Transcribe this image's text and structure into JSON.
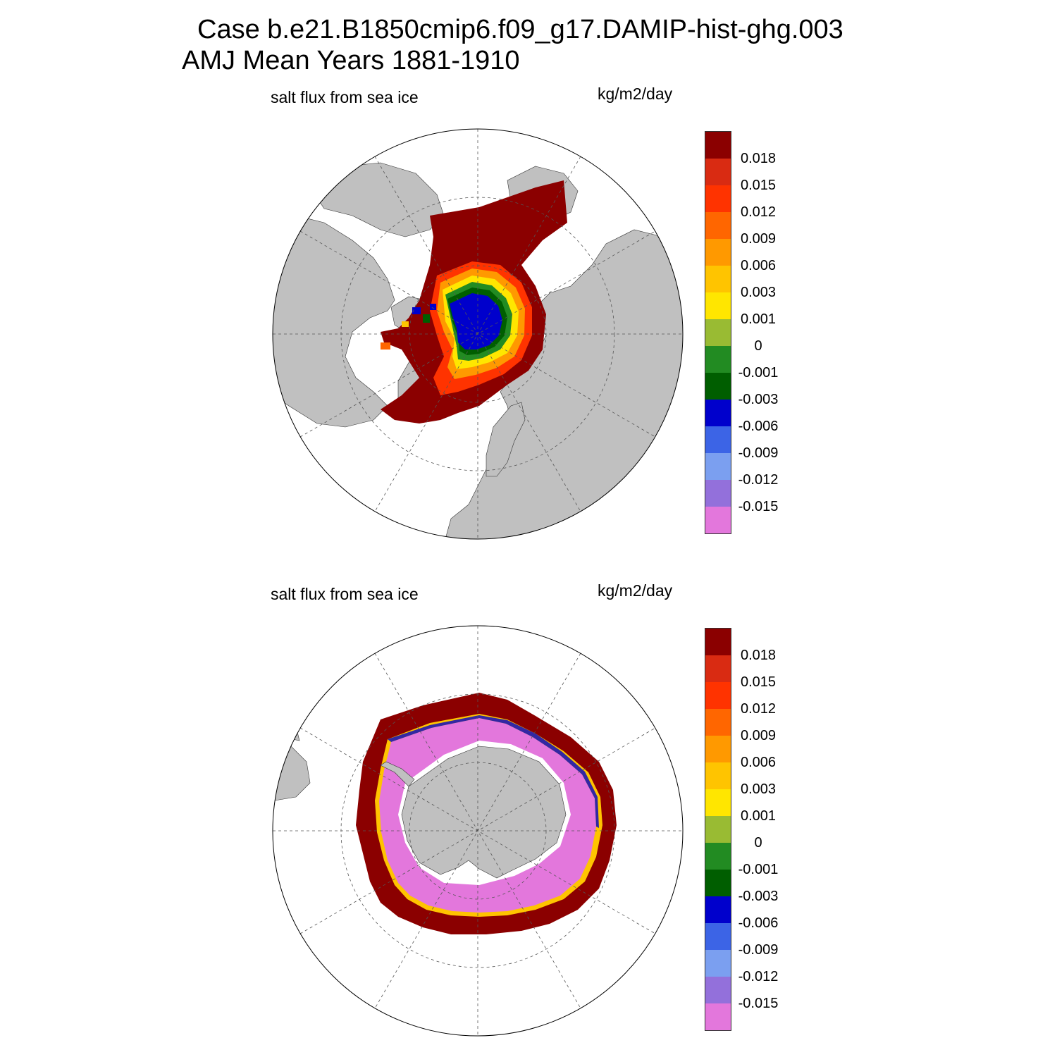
{
  "title": {
    "line1": "Case b.e21.B1850cmip6.f09_g17.DAMIP-hist-ghg.003",
    "line2": "AMJ Mean   Years 1881-1910"
  },
  "panels": [
    {
      "variable_label": "salt flux from sea ice",
      "units_label": "kg/m2/day",
      "hemisphere": "north"
    },
    {
      "variable_label": "salt flux from sea ice",
      "units_label": "kg/m2/day",
      "hemisphere": "south"
    }
  ],
  "colorbar": {
    "levels": [
      "0.018",
      "0.015",
      "0.012",
      "0.009",
      "0.006",
      "0.003",
      "0.001",
      "0",
      "-0.001",
      "-0.003",
      "-0.006",
      "-0.009",
      "-0.012",
      "-0.015"
    ],
    "colors": [
      "#8b0000",
      "#d92b12",
      "#ff3300",
      "#ff6600",
      "#ff9900",
      "#ffc400",
      "#ffe600",
      "#99bb33",
      "#228b22",
      "#005e00",
      "#0000cc",
      "#3c64e6",
      "#7b9ff0",
      "#9370db",
      "#e377dc"
    ]
  },
  "style": {
    "land_color": "#c0c0c0",
    "grid_color": "#555555"
  }
}
